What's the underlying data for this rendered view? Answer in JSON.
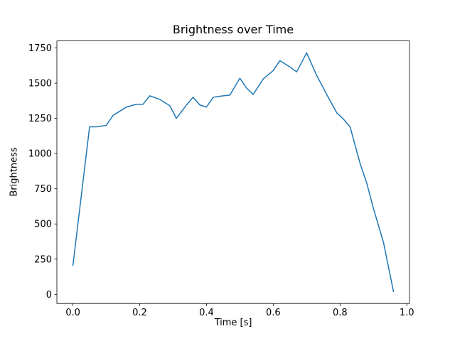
{
  "chart_data": {
    "type": "line",
    "title": "Brightness over Time",
    "xlabel": "Time [s]",
    "ylabel": "Brightness",
    "x": [
      0.0,
      0.05,
      0.07,
      0.1,
      0.12,
      0.14,
      0.16,
      0.19,
      0.21,
      0.23,
      0.26,
      0.29,
      0.31,
      0.34,
      0.36,
      0.38,
      0.4,
      0.42,
      0.45,
      0.47,
      0.5,
      0.52,
      0.54,
      0.57,
      0.6,
      0.62,
      0.65,
      0.67,
      0.7,
      0.73,
      0.76,
      0.79,
      0.81,
      0.83,
      0.86,
      0.88,
      0.9,
      0.93,
      0.96
    ],
    "y": [
      205,
      1190,
      1190,
      1200,
      1270,
      1300,
      1330,
      1350,
      1350,
      1410,
      1385,
      1340,
      1250,
      1345,
      1400,
      1345,
      1330,
      1400,
      1410,
      1415,
      1535,
      1465,
      1420,
      1530,
      1590,
      1660,
      1615,
      1580,
      1715,
      1555,
      1420,
      1290,
      1245,
      1190,
      930,
      790,
      610,
      370,
      20
    ],
    "xlim": [
      -0.048,
      1.008
    ],
    "ylim": [
      -65,
      1800
    ],
    "xticks": [
      0.0,
      0.2,
      0.4,
      0.6,
      0.8,
      1.0
    ],
    "yticks": [
      0,
      250,
      500,
      750,
      1000,
      1250,
      1500,
      1750
    ],
    "line_color": "#1f77b4",
    "grid": false,
    "legend": "none"
  }
}
